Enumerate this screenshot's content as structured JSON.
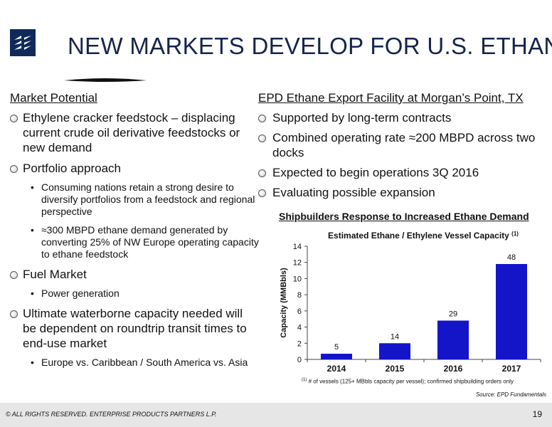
{
  "title": "NEW MARKETS DEVELOP FOR U.S. ETHANE",
  "left": {
    "heading": "Market Potential",
    "bullets": [
      {
        "text": "Ethylene cracker feedstock – displacing current crude oil derivative feedstocks or new demand",
        "sub": []
      },
      {
        "text": "Portfolio approach",
        "sub": [
          "Consuming nations retain a strong desire to diversify portfolios from a feedstock and regional perspective",
          "≈300 MBPD ethane demand generated by converting 25% of NW Europe operating capacity to ethane feedstock"
        ]
      },
      {
        "text": "Fuel Market",
        "sub": [
          "Power generation"
        ]
      },
      {
        "text": "Ultimate waterborne capacity needed will be dependent on roundtrip transit times to end-use market",
        "sub": [
          "Europe vs. Caribbean / South America vs. Asia"
        ]
      }
    ]
  },
  "right": {
    "heading": "EPD Ethane Export Facility at Morgan’s Point, TX",
    "bullets": [
      "Supported by long-term contracts",
      "Combined operating rate ≈200 MBPD across two docks",
      "Expected to begin operations 3Q 2016",
      "Evaluating possible expansion"
    ]
  },
  "chart_heading": "Shipbuilders Response to Increased Ethane Demand",
  "chart_data": {
    "type": "bar",
    "title": "Estimated Ethane / Ethylene Vessel Capacity",
    "title_sup": "(1)",
    "ylabel": "Capacity (MMBbls)",
    "xlabel": "",
    "categories": [
      "2014",
      "2015",
      "2016",
      "2017"
    ],
    "values": [
      0.7,
      2.0,
      4.8,
      11.8
    ],
    "data_labels": [
      "5",
      "14",
      "29",
      "48"
    ],
    "ylim": [
      0,
      14
    ],
    "yticks": [
      0,
      2,
      4,
      6,
      8,
      10,
      12,
      14
    ],
    "bar_color": "#1414c8",
    "grid": false
  },
  "footnote_sup": "(1)",
  "footnote": "# of vessels (125+ MBbls capacity per vessel); confirmed shipbuilding orders only",
  "source": "Source:  EPD Fundamentals",
  "footer": {
    "copyright": "© ALL RIGHTS RESERVED. ENTERPRISE PRODUCTS PARTNERS L.P.",
    "page": "19"
  },
  "colors": {
    "title": "#16254d",
    "logo": "#0f2a5a",
    "bar": "#1414c8",
    "footer_bg": "#e6e6e6"
  }
}
